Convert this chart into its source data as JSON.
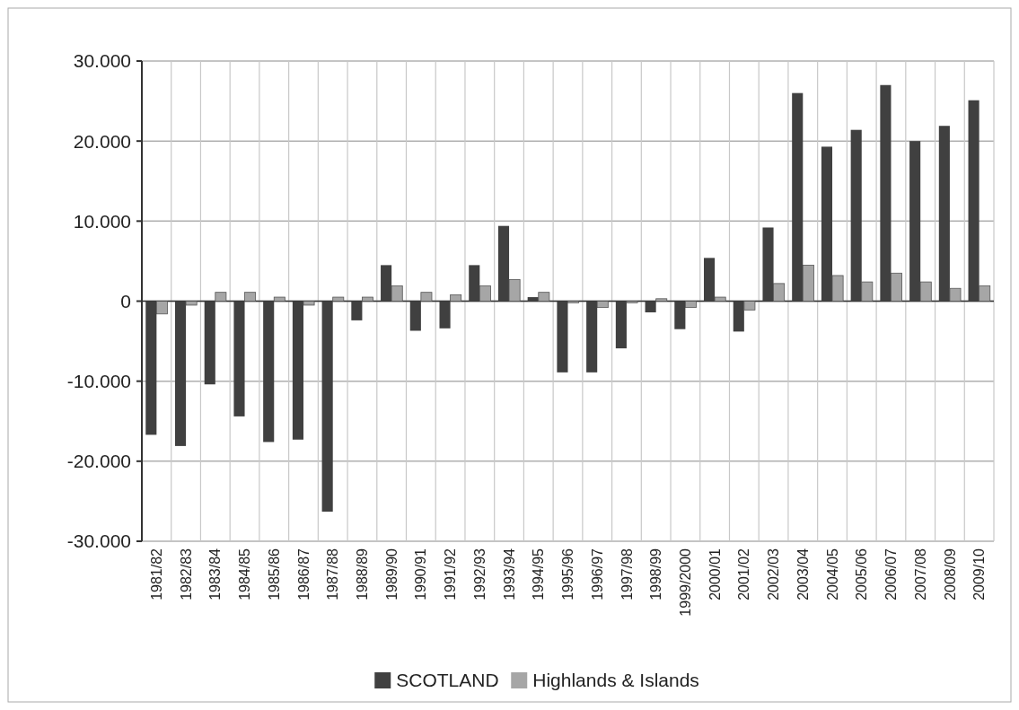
{
  "chart_data": {
    "type": "bar",
    "categories": [
      "1981/82",
      "1982/83",
      "1983/84",
      "1984/85",
      "1985/86",
      "1986/87",
      "1987/88",
      "1988/89",
      "1989/90",
      "1990/91",
      "1991/92",
      "1992/93",
      "1993/94",
      "1994/95",
      "1995/96",
      "1996/97",
      "1997/98",
      "1998/99",
      "1999/2000",
      "2000/01",
      "2001/02",
      "2002/03",
      "2003/04",
      "2004/05",
      "2005/06",
      "2006/07",
      "2007/08",
      "2008/09",
      "2009/10"
    ],
    "series": [
      {
        "name": "SCOTLAND",
        "color": "#404040",
        "values": [
          -16700,
          -18100,
          -10400,
          -14400,
          -17600,
          -17300,
          -26300,
          -2400,
          4500,
          -3700,
          -3400,
          4500,
          9400,
          500,
          -8900,
          -8900,
          -5900,
          -1400,
          -3500,
          5400,
          -3800,
          9200,
          26000,
          19300,
          21400,
          27000,
          20000,
          21900,
          25100
        ]
      },
      {
        "name": "Highlands & Islands",
        "color": "#a6a6a6",
        "values": [
          -1600,
          -500,
          1100,
          1100,
          500,
          -500,
          500,
          500,
          1900,
          1100,
          800,
          1900,
          2700,
          1100,
          -200,
          -800,
          -200,
          300,
          -800,
          500,
          -1100,
          2200,
          4500,
          3200,
          2400,
          3500,
          2400,
          1600,
          1900
        ]
      }
    ],
    "ylim": [
      -30000,
      30000
    ],
    "yticks": [
      {
        "value": -30000,
        "label": "-30.000"
      },
      {
        "value": -20000,
        "label": "-20.000"
      },
      {
        "value": -10000,
        "label": "-10.000"
      },
      0,
      {
        "value": 10000,
        "label": "10.000"
      },
      {
        "value": 20000,
        "label": "20.000"
      },
      {
        "value": 30000,
        "label": "30.000"
      }
    ],
    "grid": true,
    "legend": "bottom"
  }
}
